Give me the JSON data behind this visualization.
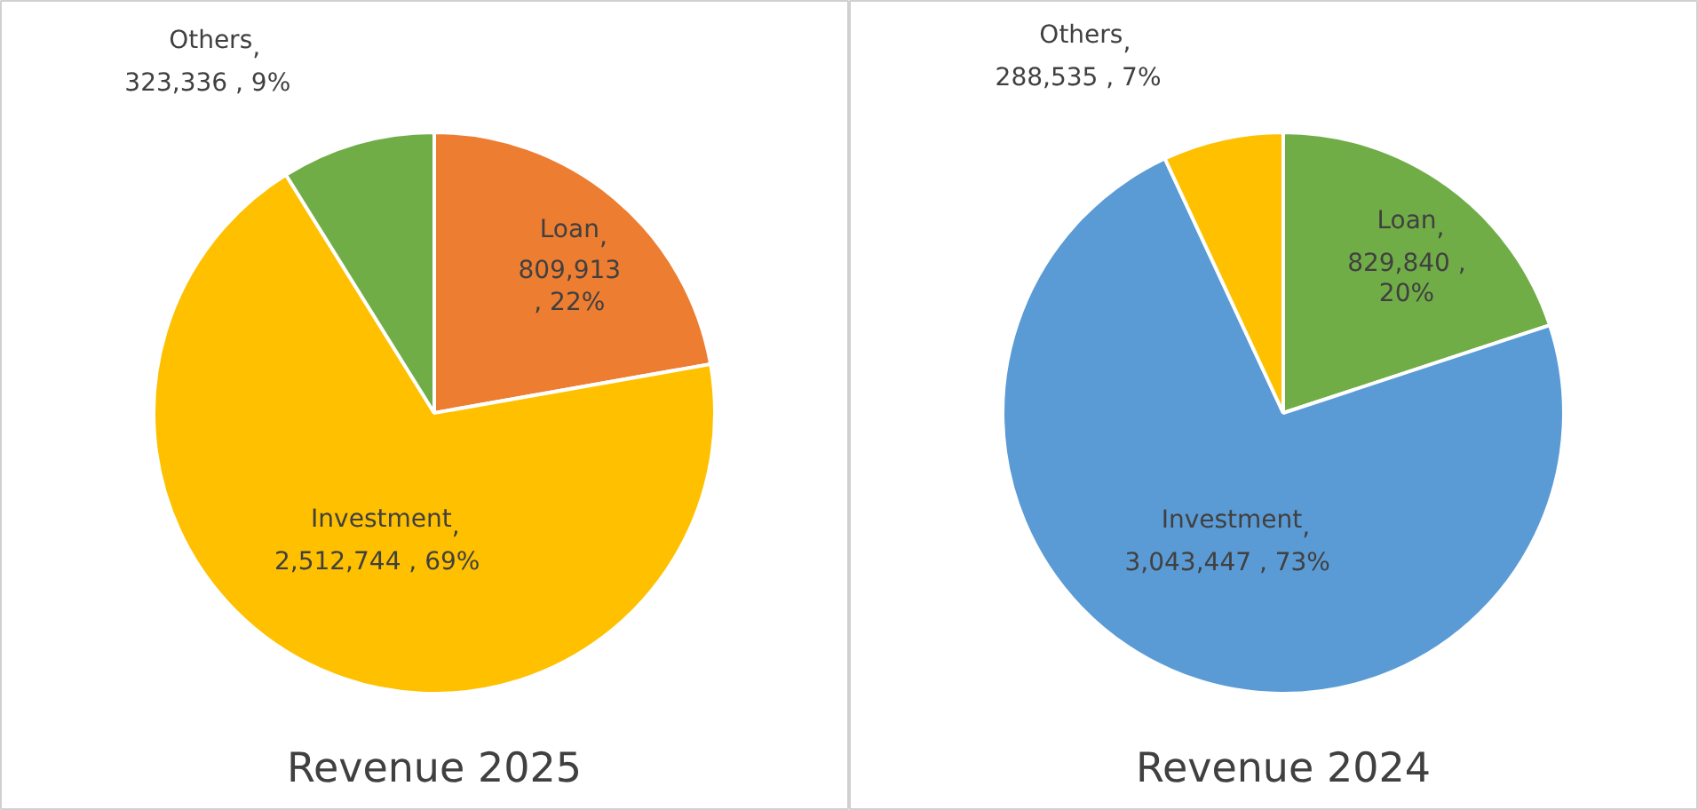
{
  "chart_data": [
    {
      "type": "pie",
      "title": "Revenue 2025",
      "categories": [
        "Loan",
        "Investment",
        "Others"
      ],
      "values": [
        809913,
        2512744,
        323336
      ],
      "colors": [
        "#ed7d31",
        "#ffc000",
        "#70ad47"
      ],
      "value_labels": [
        ",\n809,913\n, 22%",
        ",\n2,512,744 , 69%",
        ",\n323,336 , 9%"
      ]
    },
    {
      "type": "pie",
      "title": "Revenue 2024",
      "categories": [
        "Loan",
        "Investment",
        "Others"
      ],
      "values": [
        829840,
        3043447,
        288535
      ],
      "colors": [
        "#70ad47",
        "#5b9bd5",
        "#ffc000"
      ],
      "value_labels": [
        ",\n829,840 ,\n20%",
        ",\n3,043,447 , 73%",
        ",\n288,535 , 7%"
      ]
    }
  ]
}
